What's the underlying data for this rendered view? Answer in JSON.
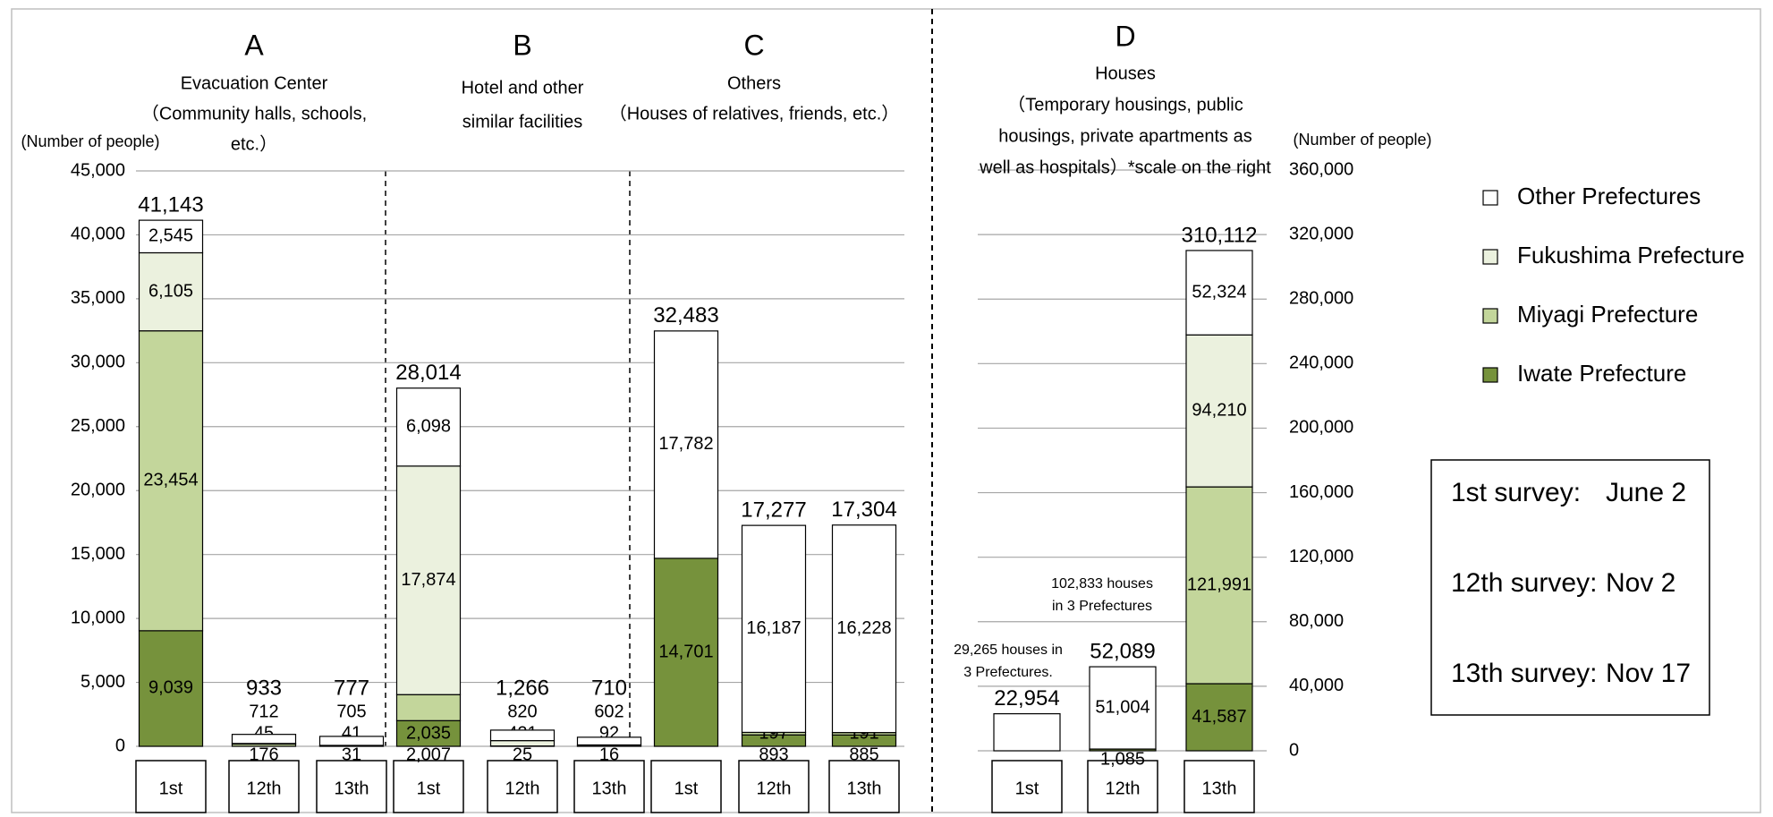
{
  "chart_data": [
    {
      "type": "bar",
      "stacked": true,
      "grid": true,
      "y_label": "(Number of people)",
      "groups": [
        {
          "letter": "A",
          "lines": [
            "Evacuation Center",
            "（Community halls, schools,",
            "etc.）"
          ]
        },
        {
          "letter": "B",
          "lines": [
            "Hotel and other",
            "similar facilities"
          ]
        },
        {
          "letter": "C",
          "lines": [
            "Others",
            "（Houses of relatives, friends, etc.）"
          ]
        }
      ],
      "categories": [
        "1st",
        "12th",
        "13th",
        "1st",
        "12th",
        "13th",
        "1st",
        "12th",
        "13th"
      ],
      "ylim": [
        0,
        45000
      ],
      "yticks": [
        {
          "value": 0,
          "label": "0"
        },
        {
          "value": 5000,
          "label": "5,000"
        },
        {
          "value": 10000,
          "label": "10,000"
        },
        {
          "value": 15000,
          "label": "15,000"
        },
        {
          "value": 20000,
          "label": "20,000"
        },
        {
          "value": 25000,
          "label": "25,000"
        },
        {
          "value": 30000,
          "label": "30,000"
        },
        {
          "value": 35000,
          "label": "35,000"
        },
        {
          "value": 40000,
          "label": "40,000"
        },
        {
          "value": 45000,
          "label": "45,000"
        }
      ],
      "series": [
        {
          "name": "Iwate Prefecture",
          "color": "#76923c",
          "values": [
            9039,
            null,
            null,
            2007,
            null,
            null,
            14701,
            893,
            885
          ],
          "value_labels": [
            "9,039",
            null,
            null,
            "2,007",
            null,
            null,
            "14,701",
            "893",
            "885"
          ]
        },
        {
          "name": "Miyagi Prefecture",
          "color": "#c3d69b",
          "values": [
            23454,
            176,
            31,
            2035,
            25,
            16,
            null,
            197,
            191
          ],
          "value_labels": [
            "23,454",
            "176",
            "31",
            "2,035",
            "25",
            "16",
            null,
            "197",
            "191"
          ]
        },
        {
          "name": "Fukushima Prefecture",
          "color": "#ebf1de",
          "values": [
            6105,
            45,
            41,
            17874,
            421,
            92,
            null,
            null,
            null
          ],
          "value_labels": [
            "6,105",
            "45",
            "41",
            "17,874",
            "421",
            "92",
            null,
            null,
            null
          ]
        },
        {
          "name": "Other Prefectures",
          "color": "#ffffff",
          "values": [
            2545,
            712,
            705,
            6098,
            820,
            602,
            17782,
            16187,
            16228
          ],
          "value_labels": [
            "2,545",
            "712",
            "705",
            "6,098",
            "820",
            "602",
            "17,782",
            "16,187",
            "16,228"
          ]
        }
      ],
      "totals": [
        41143,
        933,
        777,
        28014,
        1266,
        710,
        32483,
        17277,
        17304
      ],
      "total_labels": [
        "41,143",
        "933",
        "777",
        "28,014",
        "1,266",
        "710",
        "32,483",
        "17,277",
        "17,304"
      ]
    },
    {
      "type": "bar",
      "stacked": true,
      "grid": true,
      "letter": "D",
      "title_lines": [
        "Houses",
        "（Temporary housings, public",
        "housings, private apartments as",
        "well as hospitals）*scale on the right"
      ],
      "y_label": "(Number of people)",
      "categories": [
        "1st",
        "12th",
        "13th"
      ],
      "ylim": [
        0,
        360000
      ],
      "yticks": [
        {
          "value": 0,
          "label": "0"
        },
        {
          "value": 40000,
          "label": "40,000"
        },
        {
          "value": 80000,
          "label": "80,000"
        },
        {
          "value": 120000,
          "label": "120,000"
        },
        {
          "value": 160000,
          "label": "160,000"
        },
        {
          "value": 200000,
          "label": "200,000"
        },
        {
          "value": 240000,
          "label": "240,000"
        },
        {
          "value": 280000,
          "label": "280,000"
        },
        {
          "value": 320000,
          "label": "320,000"
        },
        {
          "value": 360000,
          "label": "360,000"
        }
      ],
      "series": [
        {
          "name": "Iwate Prefecture",
          "color": "#76923c",
          "values": [
            null,
            1085,
            41587
          ],
          "value_labels": [
            null,
            "1,085",
            "41,587"
          ]
        },
        {
          "name": "Miyagi Prefecture",
          "color": "#c3d69b",
          "values": [
            null,
            null,
            121991
          ],
          "value_labels": [
            null,
            null,
            "121,991"
          ]
        },
        {
          "name": "Fukushima Prefecture",
          "color": "#ebf1de",
          "values": [
            null,
            null,
            94210
          ],
          "value_labels": [
            null,
            null,
            "94,210"
          ]
        },
        {
          "name": "Other Prefectures",
          "color": "#ffffff",
          "values": [
            22954,
            51004,
            52324
          ],
          "value_labels": [
            null,
            "51,004",
            "52,324"
          ]
        }
      ],
      "totals": [
        22954,
        52089,
        310112
      ],
      "total_labels": [
        "22,954",
        "52,089",
        "310,112"
      ],
      "annotations": [
        {
          "lines": [
            "29,265 houses in",
            "3 Prefectures."
          ]
        },
        {
          "lines": [
            "102,833 houses",
            "in 3 Prefectures"
          ]
        }
      ]
    }
  ],
  "survey_dates": [
    {
      "label": "1st survey:",
      "date": "June 2"
    },
    {
      "label": "12th survey:",
      "date": "Nov 2"
    },
    {
      "label": "13th survey:",
      "date": "Nov 17"
    }
  ]
}
